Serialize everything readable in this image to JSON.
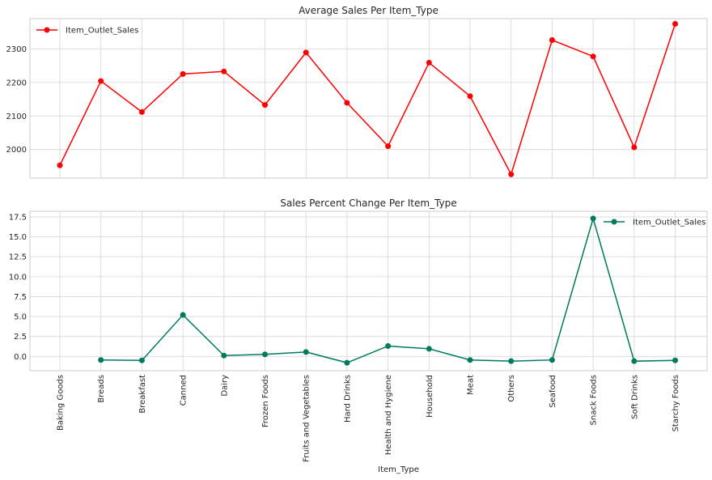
{
  "chart_data": [
    {
      "type": "line",
      "title": "Average Sales Per Item_Type",
      "xlabel": "",
      "ylabel": "",
      "categories": [
        "Baking Goods",
        "Breads",
        "Breakfast",
        "Canned",
        "Dairy",
        "Frozen Foods",
        "Fruits and Vegetables",
        "Hard Drinks",
        "Health and Hygiene",
        "Household",
        "Meat",
        "Others",
        "Seafood",
        "Snack Foods",
        "Soft Drinks",
        "Starchy Foods"
      ],
      "series": [
        {
          "name": "Item_Outlet_Sales",
          "color": "#ff0000",
          "values": [
            1952.97,
            2204.13,
            2111.81,
            2225.19,
            2232.54,
            2132.87,
            2289.01,
            2139.22,
            2010.0,
            2258.78,
            2158.98,
            1926.14,
            2326.07,
            2277.32,
            2006.51,
            2374.33
          ]
        }
      ],
      "yticks": [
        2000,
        2100,
        2200,
        2300
      ],
      "ylim": [
        1915,
        2390
      ],
      "grid": true,
      "legend": "upper left"
    },
    {
      "type": "line",
      "title": "Sales Percent Change Per Item_Type",
      "xlabel": "Item_Type",
      "ylabel": "",
      "categories": [
        "Baking Goods",
        "Breads",
        "Breakfast",
        "Canned",
        "Dairy",
        "Frozen Foods",
        "Fruits and Vegetables",
        "Hard Drinks",
        "Health and Hygiene",
        "Household",
        "Meat",
        "Others",
        "Seafood",
        "Snack Foods",
        "Soft Drinks",
        "Starchy Foods"
      ],
      "series": [
        {
          "name": "Item_Outlet_Sales",
          "color": "#007a5e",
          "values": [
            null,
            -0.45,
            -0.5,
            5.2,
            0.1,
            0.25,
            0.55,
            -0.8,
            1.3,
            0.95,
            -0.45,
            -0.6,
            -0.45,
            17.3,
            -0.6,
            -0.5
          ]
        }
      ],
      "yticks": [
        0.0,
        2.5,
        5.0,
        7.5,
        10.0,
        12.5,
        15.0,
        17.5
      ],
      "ytick_labels": [
        "0.0",
        "2.5",
        "5.0",
        "7.5",
        "10.0",
        "12.5",
        "15.0",
        "17.5"
      ],
      "ylim": [
        -1.8,
        18.2
      ],
      "grid": true,
      "legend": "upper right"
    }
  ]
}
